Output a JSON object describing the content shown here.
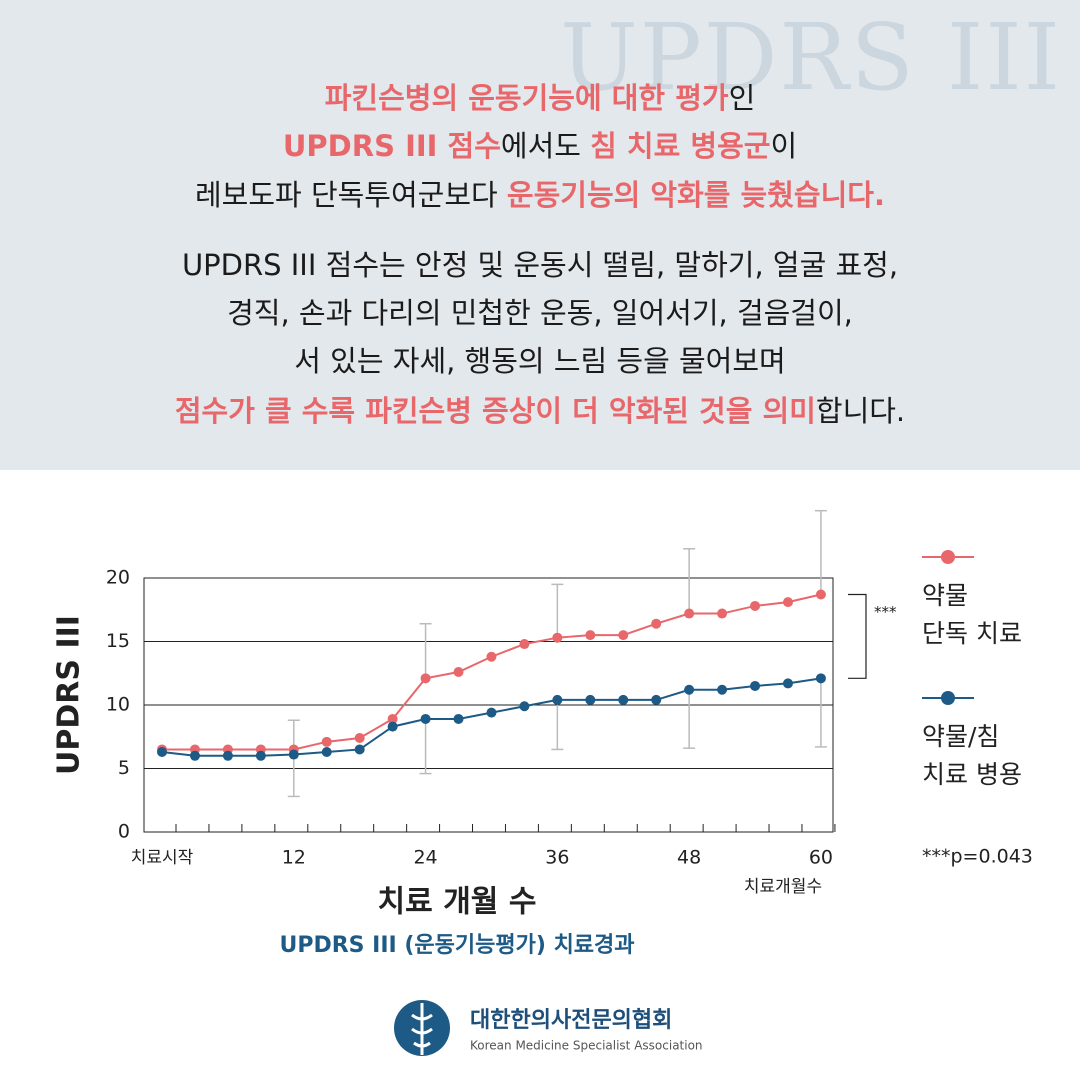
{
  "header": {
    "watermark": "UPDRS III",
    "headline": [
      [
        {
          "text": "파킨슨병의 운동기능에 대한 평가",
          "em": true
        },
        {
          "text": "인",
          "em": false
        }
      ],
      [
        {
          "text": "UPDRS III 점수",
          "em": true
        },
        {
          "text": "에서도 ",
          "em": false
        },
        {
          "text": "침 치료 병용군",
          "em": true
        },
        {
          "text": "이",
          "em": false
        }
      ],
      [
        {
          "text": "레보도파 단독투여군보다 ",
          "em": false
        },
        {
          "text": "운동기능의 악화를 늦췄습니다.",
          "em": true
        }
      ]
    ],
    "body": [
      [
        {
          "text": "UPDRS III 점수는 안정 및 운동시 떨림, 말하기, 얼굴 표정,",
          "em": false
        }
      ],
      [
        {
          "text": "경직, 손과 다리의 민첩한 운동, 일어서기, 걸음걸이,",
          "em": false
        }
      ],
      [
        {
          "text": "서 있는 자세, 행동의 느림 등을 물어보며",
          "em": false
        }
      ],
      [
        {
          "text": "점수가 클 수록 파킨슨병 증상이 더 악화된 것을 의미",
          "em": true
        },
        {
          "text": "합니다.",
          "em": false
        }
      ]
    ]
  },
  "chart_data": {
    "type": "line",
    "title": "UPDRS III (운동기능평가) 치료경과",
    "xlabel": "치료 개월 수",
    "ylabel": "UPDRS III",
    "xnote": "치료개월수",
    "x": [
      0,
      3,
      6,
      9,
      12,
      15,
      18,
      21,
      24,
      27,
      30,
      33,
      36,
      39,
      42,
      45,
      48,
      51,
      54,
      57,
      60
    ],
    "series": [
      {
        "name": "약물 단독 치료",
        "color": "#e8676b",
        "values": [
          6.5,
          6.5,
          6.5,
          6.5,
          6.5,
          7.1,
          7.4,
          8.9,
          12.1,
          12.6,
          13.8,
          14.8,
          15.3,
          15.5,
          15.5,
          16.4,
          17.2,
          17.2,
          17.8,
          18.1,
          18.7
        ],
        "errors": [
          null,
          null,
          null,
          null,
          2.3,
          null,
          null,
          null,
          4.3,
          null,
          null,
          null,
          4.2,
          null,
          null,
          null,
          5.1,
          null,
          null,
          null,
          6.6
        ],
        "error_side": "up"
      },
      {
        "name": "약물/침 치료 병용",
        "color": "#1d5a86",
        "values": [
          6.3,
          6.0,
          6.0,
          6.0,
          6.1,
          6.3,
          6.5,
          8.3,
          8.9,
          8.9,
          9.4,
          9.9,
          10.4,
          10.4,
          10.4,
          10.4,
          11.2,
          11.2,
          11.5,
          11.7,
          12.1
        ],
        "errors": [
          null,
          null,
          null,
          null,
          3.3,
          null,
          null,
          null,
          4.3,
          null,
          null,
          null,
          3.9,
          null,
          null,
          null,
          4.6,
          null,
          null,
          null,
          5.4
        ],
        "error_side": "down"
      }
    ],
    "xlim": [
      -1.64,
      61.1
    ],
    "xticks": [
      {
        "value": 0,
        "label": "치료시작"
      },
      12,
      24,
      36,
      48,
      60
    ],
    "ylim": [
      0,
      20
    ],
    "yticks": [
      0,
      5,
      10,
      15,
      20
    ],
    "grid": true,
    "significance": "***",
    "pvalue": "***p=0.043"
  },
  "footer": {
    "org": "대한한의사전문의협회",
    "org_en": "Korean Medicine Specialist Association"
  }
}
